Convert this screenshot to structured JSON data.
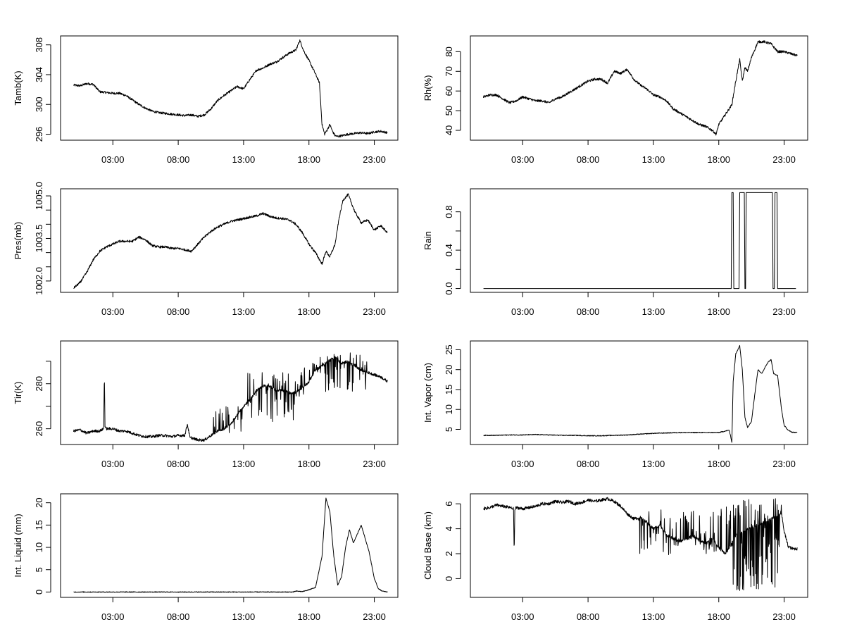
{
  "figure": {
    "background": "#ffffff",
    "line_color": "#000000"
  },
  "chart_data": [
    {
      "type": "line",
      "ylabel": "Tamb(K)",
      "xticks": [
        "03:00",
        "08:00",
        "13:00",
        "18:00",
        "23:00"
      ],
      "xlim": [
        -1.0,
        24.8
      ],
      "ylim": [
        295.2,
        309.2
      ],
      "yticks": [
        "296",
        "300",
        "304",
        "308"
      ],
      "ytick_values": [
        296,
        300,
        304,
        308
      ],
      "x": [
        0,
        0.5,
        1,
        1.5,
        2,
        2.5,
        3,
        3.5,
        4,
        4.5,
        5,
        5.5,
        6,
        6.5,
        7,
        7.5,
        8,
        8.5,
        9,
        9.5,
        10,
        10.5,
        11,
        11.5,
        12,
        12.5,
        13,
        13.5,
        14,
        14.5,
        15,
        15.5,
        16,
        16.5,
        17,
        17.3,
        17.6,
        18,
        18.5,
        18.8,
        19,
        19.2,
        19.4,
        19.6,
        19.8,
        20,
        20.2,
        20.5,
        21,
        21.5,
        22,
        22.5,
        23,
        23.5,
        24
      ],
      "values": [
        302.6,
        302.5,
        302.8,
        302.7,
        301.7,
        301.6,
        301.5,
        301.5,
        301.2,
        300.6,
        300.0,
        299.5,
        299.1,
        298.9,
        298.8,
        298.7,
        298.6,
        298.5,
        298.6,
        298.4,
        298.6,
        299.4,
        300.5,
        301.2,
        301.8,
        302.4,
        302.1,
        303.4,
        304.6,
        304.9,
        305.4,
        305.7,
        306.3,
        306.9,
        307.3,
        308.6,
        307.2,
        305.9,
        304.1,
        302.9,
        297.3,
        296.0,
        296.6,
        297.3,
        296.4,
        295.8,
        295.7,
        295.8,
        296.0,
        296.1,
        296.2,
        296.1,
        296.3,
        296.4,
        296.2
      ],
      "noise": 0.15
    },
    {
      "type": "line",
      "ylabel": "Rh(%)",
      "xticks": [
        "03:00",
        "08:00",
        "13:00",
        "18:00",
        "23:00"
      ],
      "xlim": [
        -1.0,
        24.8
      ],
      "ylim": [
        35,
        88
      ],
      "yticks": [
        "40",
        "50",
        "60",
        "70",
        "80"
      ],
      "ytick_values": [
        40,
        50,
        60,
        70,
        80
      ],
      "x": [
        0,
        0.5,
        1,
        1.5,
        2,
        2.5,
        3,
        3.5,
        4,
        4.5,
        5,
        5.5,
        6,
        6.5,
        7,
        7.5,
        8,
        8.5,
        9,
        9.5,
        10,
        10.5,
        11,
        11.5,
        12,
        12.5,
        13,
        13.5,
        14,
        14.5,
        15,
        15.5,
        16,
        16.5,
        17,
        17.5,
        17.8,
        18,
        18.5,
        19,
        19.3,
        19.6,
        19.8,
        20,
        20.2,
        20.5,
        21,
        21.5,
        22,
        22.5,
        23,
        23.5,
        24
      ],
      "values": [
        57,
        58,
        58,
        56,
        54,
        55,
        57,
        56,
        55,
        55,
        54,
        56,
        57,
        59,
        61,
        63,
        65,
        66,
        66,
        64,
        70,
        69,
        71,
        66,
        63,
        61,
        58,
        57,
        55,
        51,
        49,
        47,
        45,
        43,
        42,
        40,
        38,
        43,
        48,
        53,
        65,
        76,
        65,
        72,
        70,
        77,
        85,
        85,
        84,
        80,
        80,
        79,
        78
      ],
      "noise": 0.6
    },
    {
      "type": "line",
      "ylabel": "Pres(mb)",
      "xticks": [
        "03:00",
        "08:00",
        "13:00",
        "18:00",
        "23:00"
      ],
      "xlim": [
        -1.0,
        24.8
      ],
      "ylim": [
        1001.6,
        1005.25
      ],
      "yticks": [
        "1002.0",
        "1003.5",
        "1005.0"
      ],
      "ytick_values": [
        1002.0,
        1003.5,
        1005.0
      ],
      "minor_ytick_values": [
        1002.5,
        1003.0,
        1004.0,
        1004.5
      ],
      "x": [
        0,
        0.5,
        1,
        1.5,
        2,
        2.5,
        3,
        3.5,
        4,
        4.5,
        5,
        5.5,
        6,
        6.5,
        7,
        7.5,
        8,
        8.5,
        9,
        9.5,
        10,
        10.5,
        11,
        11.5,
        12,
        12.5,
        13,
        13.5,
        14,
        14.5,
        15,
        15.5,
        16,
        16.5,
        17,
        17.5,
        18,
        18.5,
        19,
        19.3,
        19.6,
        20,
        20.3,
        20.6,
        21,
        21.5,
        22,
        22.5,
        23,
        23.5,
        24
      ],
      "values": [
        1001.75,
        1001.95,
        1002.3,
        1002.75,
        1003.05,
        1003.2,
        1003.3,
        1003.4,
        1003.4,
        1003.4,
        1003.55,
        1003.45,
        1003.25,
        1003.2,
        1003.2,
        1003.15,
        1003.15,
        1003.1,
        1003.05,
        1003.3,
        1003.55,
        1003.75,
        1003.9,
        1004.0,
        1004.1,
        1004.15,
        1004.2,
        1004.25,
        1004.3,
        1004.38,
        1004.28,
        1004.22,
        1004.2,
        1004.15,
        1004.0,
        1003.7,
        1003.3,
        1003.0,
        1002.6,
        1003.05,
        1002.85,
        1003.3,
        1004.2,
        1004.85,
        1005.05,
        1004.45,
        1004.05,
        1004.15,
        1003.8,
        1003.95,
        1003.7
      ],
      "noise": 0.04
    },
    {
      "type": "line",
      "ylabel": "Rain",
      "xticks": [
        "03:00",
        "08:00",
        "13:00",
        "18:00",
        "23:00"
      ],
      "xlim": [
        -1.0,
        24.8
      ],
      "ylim": [
        -0.04,
        1.04
      ],
      "yticks": [
        "0.0",
        "0.4",
        "0.8"
      ],
      "ytick_values": [
        0.0,
        0.4,
        0.8
      ],
      "minor_ytick_values": [
        0.2,
        0.6
      ],
      "x": [
        0,
        18.95,
        19.0,
        19.1,
        19.15,
        19.55,
        19.6,
        19.95,
        20.0,
        20.05,
        20.1,
        20.15,
        22.1,
        22.15,
        22.25,
        22.3,
        22.45,
        22.5,
        23.9
      ],
      "values": [
        0,
        0,
        1,
        1,
        0,
        0,
        1,
        1,
        0,
        0,
        1,
        1,
        1,
        0,
        0,
        1,
        1,
        0,
        0
      ],
      "noise": 0
    },
    {
      "type": "line",
      "ylabel": "Tir(K)",
      "xticks": [
        "03:00",
        "08:00",
        "13:00",
        "18:00",
        "23:00"
      ],
      "xlim": [
        -1.0,
        24.8
      ],
      "ylim": [
        253,
        299
      ],
      "yticks": [
        "260",
        "280"
      ],
      "ytick_values": [
        260,
        280
      ],
      "minor_ytick_values": [
        270,
        290
      ],
      "x": [
        0,
        0.5,
        1,
        1.5,
        2,
        2.3,
        2.35,
        2.4,
        2.5,
        3,
        3.5,
        4,
        4.5,
        5,
        5.5,
        6,
        6.5,
        7,
        7.5,
        8,
        8.5,
        8.7,
        8.9,
        9,
        9.5,
        10,
        10.5,
        11,
        11.5,
        12,
        12.5,
        13,
        13.5,
        14,
        14.5,
        15,
        15.5,
        16,
        16.5,
        17,
        17.5,
        18,
        18.5,
        19,
        19.5,
        20,
        20.5,
        21,
        21.5,
        22,
        22.5,
        23,
        23.5,
        24
      ],
      "values": [
        259,
        259.5,
        258,
        259,
        259,
        260,
        285,
        261,
        260,
        260,
        259,
        259,
        258,
        257,
        256.5,
        256.5,
        257,
        257,
        256.5,
        257,
        257,
        262,
        256,
        256,
        255,
        255,
        257,
        259,
        260,
        262,
        266,
        270,
        273,
        277,
        279,
        279,
        277,
        277,
        276,
        276,
        278,
        281,
        286,
        288,
        290,
        292,
        289,
        290,
        288,
        286,
        285,
        284,
        283,
        281
      ],
      "noise": 0.6,
      "spikes": [
        {
          "from": 10.6,
          "to": 13.2,
          "low": 258,
          "high": 271,
          "step": 0.12
        },
        {
          "from": 13.2,
          "to": 17.6,
          "low": 263,
          "high": 285,
          "step": 0.07
        },
        {
          "from": 17.6,
          "to": 19.2,
          "low": 284,
          "high": 293,
          "step": 0.1
        },
        {
          "from": 19.2,
          "to": 22.5,
          "low": 276,
          "high": 294,
          "step": 0.08
        }
      ]
    },
    {
      "type": "line",
      "ylabel": "Int. Vapor (cm)",
      "xticks": [
        "03:00",
        "08:00",
        "13:00",
        "18:00",
        "23:00"
      ],
      "xlim": [
        -1.0,
        24.8
      ],
      "ylim": [
        1.2,
        27.2
      ],
      "yticks": [
        "5",
        "10",
        "15",
        "20",
        "25"
      ],
      "ytick_values": [
        5,
        10,
        15,
        20,
        25
      ],
      "x": [
        0,
        1,
        2,
        3,
        4,
        5,
        6,
        7,
        8,
        9,
        10,
        11,
        12,
        13,
        14,
        15,
        16,
        17,
        18,
        18.8,
        19.0,
        19.1,
        19.3,
        19.6,
        19.8,
        20.0,
        20.2,
        20.5,
        20.8,
        21.0,
        21.3,
        21.6,
        21.8,
        22.0,
        22.2,
        22.5,
        22.8,
        23.0,
        23.3,
        23.6,
        24
      ],
      "values": [
        3.5,
        3.5,
        3.6,
        3.6,
        3.7,
        3.6,
        3.5,
        3.5,
        3.4,
        3.4,
        3.5,
        3.6,
        3.8,
        4.0,
        4.1,
        4.2,
        4.2,
        4.2,
        4.2,
        4.8,
        1.8,
        17,
        24,
        26,
        20,
        8,
        5.5,
        7,
        15,
        20,
        19,
        21,
        22,
        22.5,
        19,
        18.5,
        10,
        6,
        4.8,
        4.3,
        4.2
      ],
      "noise": 0.1
    },
    {
      "type": "line",
      "ylabel": "Int. Liquid (mm)",
      "xticks": [
        "03:00",
        "08:00",
        "13:00",
        "18:00",
        "23:00"
      ],
      "xlim": [
        -1.0,
        24.8
      ],
      "ylim": [
        -1.2,
        22.0
      ],
      "yticks": [
        "0",
        "5",
        "10",
        "15",
        "20"
      ],
      "ytick_values": [
        0,
        5,
        10,
        15,
        20
      ],
      "x": [
        0,
        2,
        4,
        6,
        8,
        10,
        12,
        14,
        16,
        16.8,
        17.0,
        17.5,
        18.0,
        18.5,
        19.0,
        19.3,
        19.6,
        19.9,
        20.2,
        20.5,
        20.8,
        21.1,
        21.4,
        21.7,
        22.0,
        22.3,
        22.6,
        23.0,
        23.3,
        23.6,
        24
      ],
      "values": [
        0,
        0,
        0,
        0,
        0,
        0,
        0,
        0,
        0,
        0,
        0.2,
        0.1,
        0.5,
        1,
        8,
        21,
        18,
        8,
        1.5,
        3.5,
        10,
        14,
        11,
        13,
        15,
        12,
        9,
        3,
        0.8,
        0.2,
        0
      ],
      "noise": 0.08
    },
    {
      "type": "line",
      "ylabel": "Cloud Base (km)",
      "xticks": [
        "03:00",
        "08:00",
        "13:00",
        "18:00",
        "23:00"
      ],
      "xlim": [
        -1.0,
        24.8
      ],
      "ylim": [
        -1.5,
        6.8
      ],
      "yticks": [
        "0",
        "2",
        "4",
        "6"
      ],
      "ytick_values": [
        0,
        2,
        4,
        6
      ],
      "x": [
        0,
        0.5,
        1,
        1.5,
        2,
        2.3,
        2.35,
        2.4,
        2.5,
        3,
        3.5,
        4,
        4.5,
        5,
        5.5,
        6,
        6.5,
        7,
        7.5,
        8,
        8.5,
        9,
        9.5,
        10,
        10.5,
        11,
        11.5,
        12,
        12.5,
        13,
        13.5,
        14,
        14.5,
        15,
        15.5,
        16,
        16.5,
        17,
        17.5,
        18,
        18.5,
        19,
        19.3,
        22.8,
        23.0,
        23.3,
        23.6,
        24
      ],
      "values": [
        5.6,
        5.7,
        5.9,
        5.8,
        5.7,
        5.6,
        2.0,
        5.5,
        5.7,
        5.6,
        5.7,
        5.8,
        6.0,
        6.0,
        6.2,
        6.1,
        6.2,
        6.0,
        6.1,
        6.3,
        6.2,
        6.3,
        6.4,
        6.2,
        5.8,
        5.2,
        4.8,
        4.9,
        4.5,
        4.0,
        4.3,
        3.5,
        3.2,
        3.0,
        3.2,
        3.4,
        3.1,
        2.8,
        3.3,
        2.5,
        2.0,
        2.8,
        3.5,
        5.2,
        3.8,
        2.6,
        2.4,
        2.4
      ],
      "noise": 0.12,
      "spikes": [
        {
          "from": 11.8,
          "to": 19.0,
          "low": 1.9,
          "high": 5.8,
          "step": 0.09
        },
        {
          "from": 19.0,
          "to": 22.8,
          "low": -1.0,
          "high": 6.5,
          "step": 0.035
        }
      ]
    }
  ]
}
